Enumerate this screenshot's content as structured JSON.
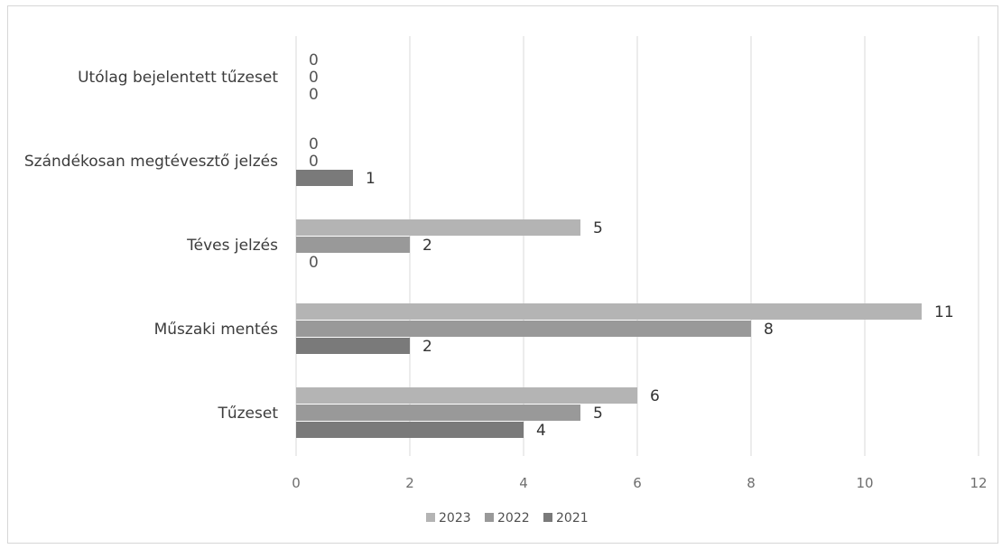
{
  "chart_data": {
    "type": "bar",
    "orientation": "horizontal",
    "categories": [
      "Utólag bejelentett tűzeset",
      "Szándékosan megtévesztő jelzés",
      "Téves jelzés",
      "Műszaki mentés",
      "Tűzeset"
    ],
    "series": [
      {
        "name": "2023",
        "values": [
          0,
          0,
          5,
          11,
          6
        ],
        "color": "#b4b4b4"
      },
      {
        "name": "2022",
        "values": [
          0,
          0,
          2,
          8,
          5
        ],
        "color": "#999999"
      },
      {
        "name": "2021",
        "values": [
          0,
          1,
          0,
          2,
          4
        ],
        "color": "#7a7a7a"
      }
    ],
    "xlim": [
      0,
      12
    ],
    "xticks": [
      "0",
      "2",
      "4",
      "6",
      "8",
      "10",
      "12"
    ],
    "grid": true,
    "legend": "bottom",
    "title": "",
    "xlabel": "",
    "ylabel": ""
  }
}
